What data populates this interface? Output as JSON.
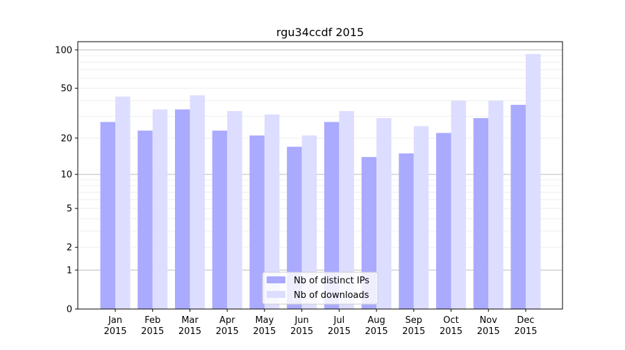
{
  "chart_data": {
    "type": "bar",
    "title": "rgu34ccdf 2015",
    "xlabel": "",
    "ylabel": "",
    "yscale": "log(1+y)",
    "ylim": [
      0,
      116
    ],
    "yticks": [
      0,
      1,
      2,
      5,
      10,
      20,
      50,
      100
    ],
    "ytick_labels": [
      "0",
      "1",
      "2",
      "5",
      "10",
      "20",
      "50",
      "100"
    ],
    "categories": [
      "Jan\n2015",
      "Feb\n2015",
      "Mar\n2015",
      "Apr\n2015",
      "May\n2015",
      "Jun\n2015",
      "Jul\n2015",
      "Aug\n2015",
      "Sep\n2015",
      "Oct\n2015",
      "Nov\n2015",
      "Dec\n2015"
    ],
    "series": [
      {
        "name": "Nb of distinct IPs",
        "color": "#aaaaff",
        "values": [
          27,
          23,
          34,
          23,
          21,
          17,
          27,
          14,
          15,
          22,
          29,
          37
        ]
      },
      {
        "name": "Nb of downloads",
        "color": "#ddddff",
        "values": [
          43,
          34,
          44,
          33,
          31,
          21,
          33,
          29,
          25,
          40,
          40,
          93
        ]
      }
    ],
    "grid": true,
    "legend": "bottom-center"
  }
}
